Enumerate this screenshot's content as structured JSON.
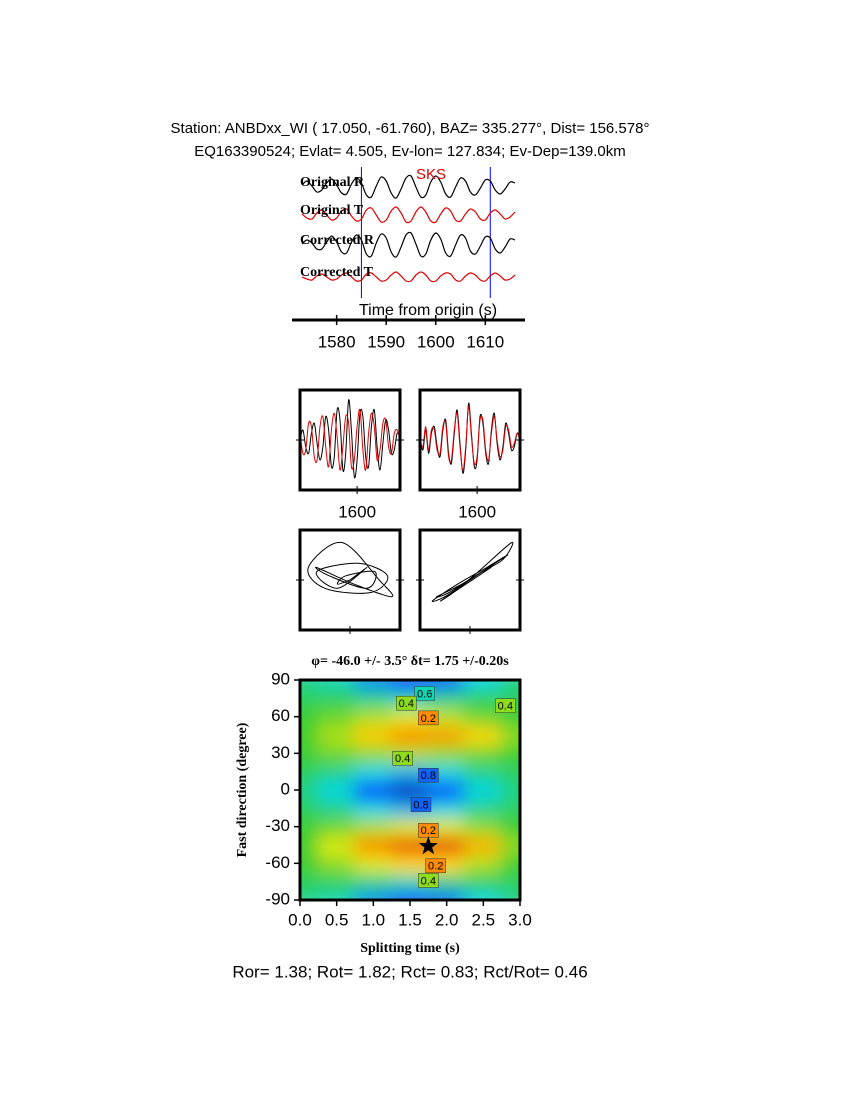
{
  "header": {
    "station": "Station: ANBDxx_WI (  17.050,  -61.760), BAZ=  335.277°, Dist=  156.578°",
    "event": "EQ163390524; Evlat=   4.505, Ev-lon= 127.834; Ev-Dep=139.0km"
  },
  "chart_data": [
    {
      "type": "traces",
      "annotation": "SKS",
      "xlabel": "Time from origin (s)",
      "x": [
        1573,
        1574,
        1575,
        1576,
        1577,
        1578,
        1579,
        1580,
        1581,
        1582,
        1583,
        1584,
        1585,
        1586,
        1587,
        1588,
        1589,
        1590,
        1591,
        1592,
        1593,
        1594,
        1595,
        1596,
        1597,
        1598,
        1599,
        1600,
        1601,
        1602,
        1603,
        1604,
        1605,
        1606,
        1607,
        1608,
        1609,
        1610,
        1611,
        1612,
        1613,
        1614,
        1615,
        1616
      ],
      "xlim": [
        1572,
        1617
      ],
      "xticks": [
        1580,
        1590,
        1600,
        1610
      ],
      "ylim": [
        -15,
        15
      ],
      "window": [
        1585,
        1611
      ],
      "window_color": "#0000ff",
      "series": [
        {
          "name": "Original R",
          "color": "#000000",
          "values": [
            2,
            6,
            1,
            -5,
            -3,
            4,
            8,
            2,
            -6,
            -7,
            3,
            9,
            4,
            -8,
            -10,
            1,
            10,
            6,
            -6,
            -11,
            -2,
            9,
            11,
            0,
            -10,
            -8,
            5,
            11,
            5,
            -7,
            -10,
            0,
            9,
            6,
            -5,
            -8,
            -1,
            7,
            6,
            -3,
            -7,
            -2,
            5,
            4
          ]
        },
        {
          "name": "Original T",
          "color": "#e00000",
          "values": [
            1,
            -3,
            -4,
            2,
            5,
            0,
            -5,
            -3,
            4,
            6,
            -1,
            -6,
            -4,
            5,
            7,
            0,
            -7,
            -5,
            4,
            8,
            2,
            -7,
            -6,
            3,
            8,
            3,
            -6,
            -7,
            1,
            7,
            4,
            -5,
            -6,
            1,
            6,
            3,
            -4,
            -5,
            2,
            5,
            1,
            -4,
            -2,
            3
          ]
        },
        {
          "name": "Corrected R",
          "color": "#000000",
          "values": [
            1,
            5,
            2,
            -4,
            -4,
            3,
            9,
            3,
            -7,
            -8,
            3,
            10,
            5,
            -9,
            -11,
            2,
            11,
            7,
            -7,
            -12,
            -2,
            10,
            12,
            1,
            -11,
            -9,
            5,
            12,
            6,
            -8,
            -11,
            0,
            10,
            7,
            -6,
            -9,
            -1,
            8,
            7,
            -4,
            -8,
            -2,
            6,
            5
          ]
        },
        {
          "name": "Corrected T",
          "color": "#e00000",
          "values": [
            0,
            -2,
            -3,
            1,
            3,
            0,
            -3,
            -2,
            2,
            4,
            0,
            -4,
            -3,
            3,
            4,
            0,
            -4,
            -3,
            2,
            5,
            1,
            -4,
            -4,
            2,
            5,
            2,
            -4,
            -4,
            1,
            4,
            3,
            -3,
            -4,
            1,
            4,
            2,
            -3,
            -4,
            1,
            4,
            1,
            -3,
            -2,
            2
          ]
        }
      ]
    },
    {
      "type": "line",
      "x": [
        1580,
        1581,
        1582,
        1583,
        1584,
        1585,
        1586,
        1587,
        1588,
        1589,
        1590,
        1591,
        1592,
        1593,
        1594,
        1595,
        1596,
        1597,
        1598,
        1599,
        1600,
        1601,
        1602,
        1603,
        1604,
        1605,
        1606,
        1607,
        1608,
        1609,
        1610,
        1611,
        1612,
        1613,
        1614,
        1615
      ],
      "xlim": [
        1580,
        1615
      ],
      "xticks": [
        1600
      ],
      "ylim": [
        -15,
        15
      ],
      "series": [
        {
          "color": "#000000",
          "values": [
            0,
            3,
            -2,
            -4,
            2,
            5,
            -1,
            -6,
            -2,
            7,
            3,
            -8,
            -5,
            9,
            6,
            -9,
            -4,
            12,
            3,
            -11,
            -6,
            8,
            7,
            -5,
            -8,
            4,
            9,
            -2,
            -9,
            -1,
            6,
            3,
            -4,
            -3,
            2,
            1
          ]
        },
        {
          "color": "#e00000",
          "values": [
            2,
            -4,
            -3,
            5,
            4,
            -5,
            -6,
            4,
            7,
            -2,
            -8,
            3,
            8,
            1,
            -9,
            -2,
            7,
            5,
            -8,
            -6,
            4,
            9,
            -3,
            -9,
            2,
            8,
            4,
            -6,
            -3,
            5,
            6,
            -2,
            -4,
            2,
            3,
            0
          ]
        }
      ]
    },
    {
      "type": "line",
      "x": [
        1580,
        1581,
        1582,
        1583,
        1584,
        1585,
        1586,
        1587,
        1588,
        1589,
        1590,
        1591,
        1592,
        1593,
        1594,
        1595,
        1596,
        1597,
        1598,
        1599,
        1600,
        1601,
        1602,
        1603,
        1604,
        1605,
        1606,
        1607,
        1608,
        1609,
        1610,
        1611,
        1612,
        1613,
        1614,
        1615
      ],
      "xlim": [
        1580,
        1615
      ],
      "xticks": [
        1600
      ],
      "ylim": [
        -15,
        15
      ],
      "series": [
        {
          "color": "#000000",
          "values": [
            1,
            -3,
            3,
            -4,
            2,
            4,
            -2,
            -5,
            3,
            6,
            -4,
            -7,
            2,
            9,
            -1,
            -10,
            -3,
            11,
            2,
            -8,
            -6,
            7,
            5,
            -4,
            -7,
            3,
            8,
            -1,
            -6,
            -2,
            5,
            2,
            -3,
            -2,
            2,
            1
          ]
        },
        {
          "color": "#e00000",
          "values": [
            0,
            -2,
            4,
            -3,
            3,
            3,
            -3,
            -4,
            4,
            5,
            -5,
            -6,
            3,
            8,
            -2,
            -9,
            -2,
            10,
            1,
            -7,
            -5,
            6,
            6,
            -3,
            -6,
            2,
            7,
            0,
            -5,
            -3,
            4,
            3,
            -2,
            -1,
            2,
            0
          ]
        }
      ]
    },
    {
      "type": "particle",
      "x": [
        0,
        4,
        -3,
        -8,
        2,
        9,
        5,
        -6,
        -10,
        -2,
        7,
        10,
        1,
        -8,
        -5,
        4,
        6,
        -1,
        -3,
        0
      ],
      "values": [
        0,
        3,
        -2,
        2,
        4,
        1,
        -3,
        -2,
        3,
        9,
        0,
        -4,
        -1,
        3,
        1,
        -2,
        2,
        1,
        -1,
        0
      ],
      "xlim": [
        -12,
        12
      ],
      "ylim": [
        -12,
        12
      ],
      "color": "#000000"
    },
    {
      "type": "particle",
      "x": [
        0,
        -6,
        -9,
        -3,
        4,
        9,
        6,
        -2,
        -8,
        -5,
        3,
        8,
        10,
        2,
        -4,
        -7,
        -1,
        5,
        3,
        0
      ],
      "values": [
        0,
        -4,
        -5,
        -1,
        3,
        6,
        4,
        -1,
        -4,
        -3,
        2,
        5,
        9,
        2,
        -3,
        -5,
        -1,
        3,
        2,
        0
      ],
      "xlim": [
        -12,
        12
      ],
      "ylim": [
        -12,
        12
      ],
      "color": "#000000"
    },
    {
      "type": "contour",
      "title": "φ= -46.0 +/- 3.5° δt= 1.75 +/-0.20s",
      "xlabel": "Splitting time (s)",
      "ylabel": "Fast direction (degree)",
      "x": [
        0,
        0.5,
        1,
        1.5,
        2,
        2.5,
        3
      ],
      "y": [
        -90,
        -75,
        -60,
        -45,
        -30,
        -15,
        0,
        15,
        30,
        45,
        60,
        75,
        90
      ],
      "values": [
        [
          0.55,
          0.6,
          0.75,
          0.85,
          0.8,
          0.65,
          0.55
        ],
        [
          0.5,
          0.5,
          0.55,
          0.6,
          0.55,
          0.5,
          0.5
        ],
        [
          0.45,
          0.4,
          0.35,
          0.3,
          0.3,
          0.38,
          0.45
        ],
        [
          0.45,
          0.35,
          0.2,
          0.08,
          0.05,
          0.25,
          0.4
        ],
        [
          0.45,
          0.42,
          0.38,
          0.35,
          0.35,
          0.4,
          0.45
        ],
        [
          0.5,
          0.55,
          0.65,
          0.7,
          0.65,
          0.55,
          0.5
        ],
        [
          0.55,
          0.65,
          0.85,
          0.95,
          0.85,
          0.65,
          0.55
        ],
        [
          0.5,
          0.55,
          0.65,
          0.7,
          0.65,
          0.55,
          0.5
        ],
        [
          0.45,
          0.42,
          0.4,
          0.38,
          0.4,
          0.42,
          0.45
        ],
        [
          0.45,
          0.38,
          0.28,
          0.2,
          0.22,
          0.3,
          0.4
        ],
        [
          0.45,
          0.42,
          0.38,
          0.35,
          0.37,
          0.42,
          0.45
        ],
        [
          0.5,
          0.5,
          0.55,
          0.6,
          0.55,
          0.5,
          0.5
        ],
        [
          0.55,
          0.6,
          0.75,
          0.85,
          0.8,
          0.65,
          0.55
        ]
      ],
      "xlim": [
        0,
        3
      ],
      "ylim": [
        -90,
        90
      ],
      "xticks": [
        {
          "value": 0,
          "label": "0.0"
        },
        0.5,
        {
          "value": 1,
          "label": "1.0"
        },
        1.5,
        {
          "value": 2,
          "label": "2.0"
        },
        2.5,
        {
          "value": 3,
          "label": "3.0"
        }
      ],
      "yticks": [
        -90,
        -60,
        -30,
        0,
        30,
        60,
        90
      ],
      "best": [
        1.75,
        -46.0
      ],
      "contour_labels": [
        {
          "value": 0.6,
          "x": 1.7,
          "y": 79
        },
        {
          "value": 0.4,
          "x": 1.45,
          "y": 71
        },
        {
          "value": 0.2,
          "x": 1.75,
          "y": 59
        },
        {
          "value": 0.4,
          "x": 2.8,
          "y": 69
        },
        {
          "value": 0.4,
          "x": 1.4,
          "y": 26
        },
        {
          "value": 0.8,
          "x": 1.75,
          "y": 12
        },
        {
          "value": 0.8,
          "x": 1.65,
          "y": -12
        },
        {
          "value": 0.2,
          "x": 1.75,
          "y": -33
        },
        {
          "value": 0.2,
          "x": 1.85,
          "y": -62
        },
        {
          "value": 0.4,
          "x": 1.75,
          "y": -74
        }
      ]
    }
  ],
  "footer": "Ror= 1.38; Rot= 1.82; Rct= 0.83; Rct/Rot= 0.46"
}
